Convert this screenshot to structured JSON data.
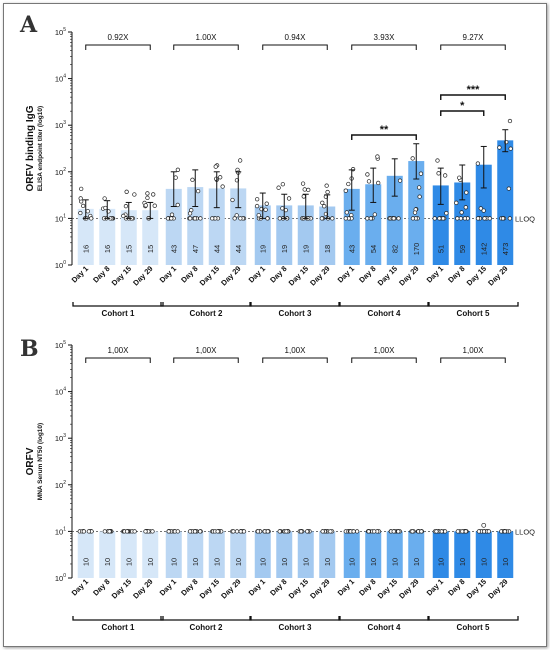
{
  "figure": {
    "lloq_label": "LLOQ",
    "day_labels": [
      "Day 1",
      "Day 8",
      "Day 15",
      "Day 29"
    ],
    "cohort_labels": [
      "Cohort 1",
      "Cohort 2",
      "Cohort 3",
      "Cohort 4",
      "Cohort 5"
    ],
    "cohort_colors": [
      "#d6e7f8",
      "#bcd7f3",
      "#a3c9f0",
      "#6aaeee",
      "#2f8ae6"
    ]
  },
  "chart_data": [
    {
      "type": "bar",
      "panel": "A",
      "ylabel": "ORFV binding IgG",
      "ylabel_sub": "ELISA endpoint titer (log10)",
      "yscale": "log",
      "ylim": [
        1,
        100000
      ],
      "ytick_labels": [
        "10^0",
        "10^1",
        "10^2",
        "10^3",
        "10^4",
        "10^5"
      ],
      "lloq": 10,
      "categories": [
        "Day 1",
        "Day 8",
        "Day 15",
        "Day 29"
      ],
      "series": [
        {
          "name": "Cohort 1",
          "values": [
            16,
            16,
            15,
            15
          ],
          "err_low": [
            10,
            10,
            10,
            10
          ],
          "err_high": [
            25,
            24,
            22,
            22
          ],
          "fold": "0.92X"
        },
        {
          "name": "Cohort 2",
          "values": [
            43,
            47,
            44,
            44
          ],
          "err_low": [
            18,
            18,
            17,
            17
          ],
          "err_high": [
            100,
            110,
            100,
            100
          ],
          "fold": "1.00X"
        },
        {
          "name": "Cohort 3",
          "values": [
            19,
            19,
            19,
            18
          ],
          "err_low": [
            10,
            10,
            10,
            10
          ],
          "err_high": [
            35,
            33,
            33,
            32
          ],
          "fold": "0.94X"
        },
        {
          "name": "Cohort 4",
          "values": [
            43,
            54,
            82,
            170
          ],
          "err_low": [
            15,
            22,
            30,
            70
          ],
          "err_high": [
            110,
            120,
            190,
            400
          ],
          "fold": "3.93X"
        },
        {
          "name": "Cohort 5",
          "values": [
            51,
            59,
            142,
            473
          ],
          "err_low": [
            20,
            25,
            45,
            270
          ],
          "err_high": [
            120,
            140,
            350,
            800
          ],
          "fold": "9.27X"
        }
      ],
      "significance": [
        {
          "cohort": "Cohort 4",
          "from": "Day 1",
          "to": "Day 29",
          "label": "**"
        },
        {
          "cohort": "Cohort 5",
          "from": "Day 1",
          "to": "Day 15",
          "label": "*"
        },
        {
          "cohort": "Cohort 5",
          "from": "Day 1",
          "to": "Day 29",
          "label": "***"
        }
      ]
    },
    {
      "type": "bar",
      "panel": "B",
      "ylabel": "ORFV",
      "ylabel_sub": "MNA Serum NT50 (log10)",
      "yscale": "log",
      "ylim": [
        1,
        100000
      ],
      "ytick_labels": [
        "10^0",
        "10^1",
        "10^2",
        "10^3",
        "10^4",
        "10^5"
      ],
      "lloq": 10,
      "categories": [
        "Day 1",
        "Day 8",
        "Day 15",
        "Day 29"
      ],
      "series": [
        {
          "name": "Cohort 1",
          "values": [
            10,
            10,
            10,
            10
          ],
          "fold": "1,00X"
        },
        {
          "name": "Cohort 2",
          "values": [
            10,
            10,
            10,
            10
          ],
          "fold": "1,00X"
        },
        {
          "name": "Cohort 3",
          "values": [
            10,
            10,
            10,
            10
          ],
          "fold": "1,00X"
        },
        {
          "name": "Cohort 4",
          "values": [
            10,
            10,
            10,
            10
          ],
          "fold": "1,00X"
        },
        {
          "name": "Cohort 5",
          "values": [
            10,
            10,
            10,
            10
          ],
          "fold": "1,00X"
        }
      ]
    }
  ]
}
